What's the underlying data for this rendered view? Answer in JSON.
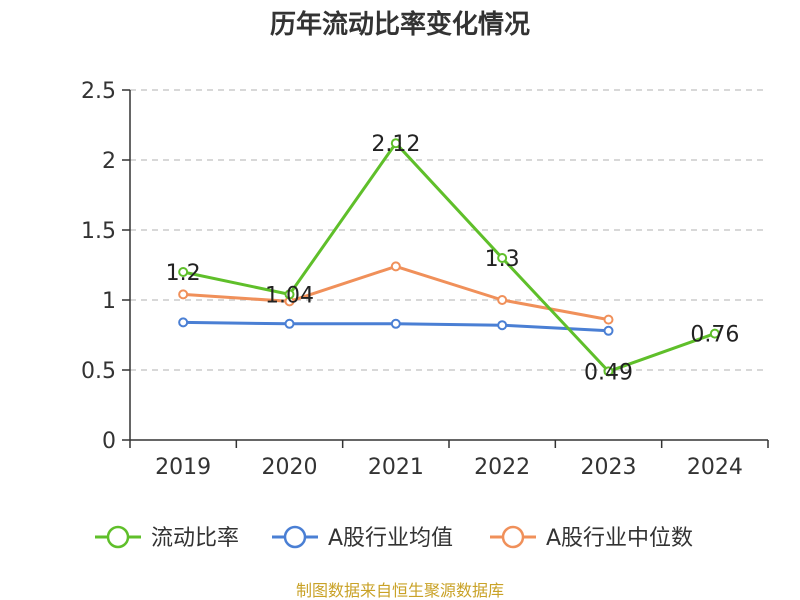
{
  "chart_data": {
    "type": "line",
    "title": "历年流动比率变化情况",
    "categories": [
      "2019",
      "2020",
      "2021",
      "2022",
      "2023",
      "2024"
    ],
    "ylim": [
      0,
      2.5
    ],
    "yticks": [
      "0",
      "0.5",
      "1",
      "1.5",
      "2",
      "2.5"
    ],
    "grid": true,
    "legend_position": "bottom",
    "series": [
      {
        "name": "流动比率",
        "color": "#5fbf2a",
        "values": [
          1.2,
          1.04,
          2.12,
          1.3,
          0.49,
          0.76
        ],
        "labels": [
          "1.2",
          "1.04",
          "2.12",
          "1.3",
          "0.49",
          "0.76"
        ]
      },
      {
        "name": "A股行业均值",
        "color": "#4a7fd4",
        "values": [
          0.84,
          0.83,
          0.83,
          0.82,
          0.78,
          null
        ]
      },
      {
        "name": "A股行业中位数",
        "color": "#f0905a",
        "values": [
          1.04,
          0.99,
          1.24,
          1.0,
          0.86,
          null
        ]
      }
    ],
    "source": "制图数据来自恒生聚源数据库"
  }
}
